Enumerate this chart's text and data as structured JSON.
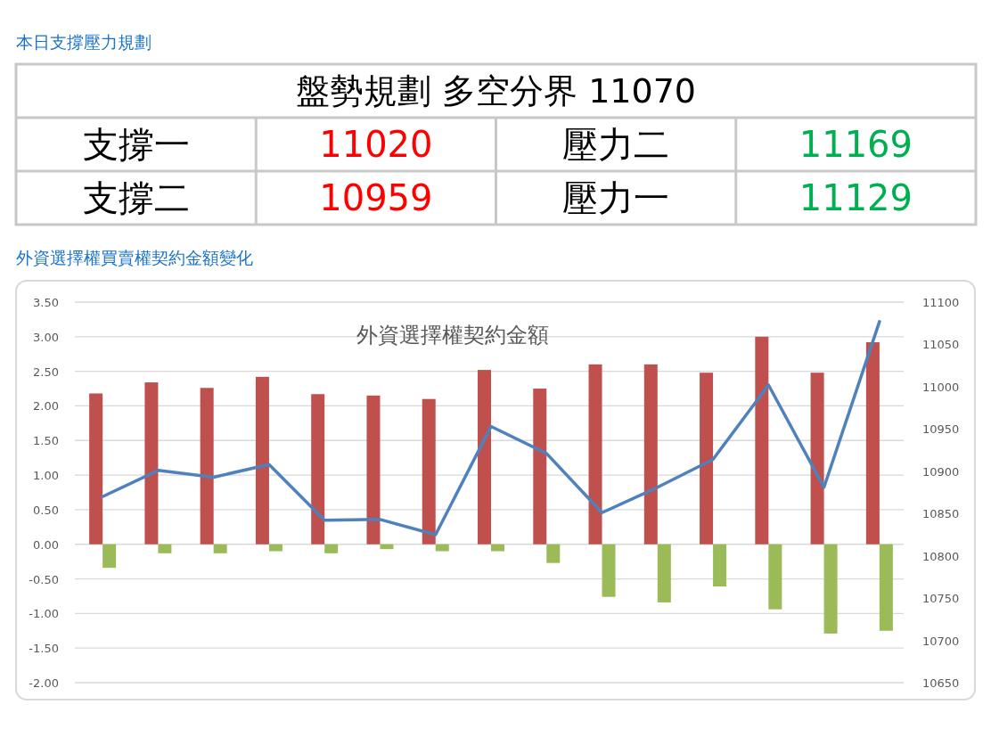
{
  "chart_data": [
    {
      "type": "other",
      "title": "本日支撐壓力規劃",
      "annotations": [
        "盤勢規劃 多空分界 11070",
        "支撐一",
        "11020",
        "壓力二",
        "11169",
        "支撐二",
        "10959",
        "壓力一",
        "11129"
      ]
    },
    {
      "type": "bar",
      "title": "外資選擇權契約金額",
      "annotations": [
        "外資選擇權買賣權契約金額變化"
      ],
      "categories": [
        null,
        null,
        null,
        null,
        null,
        null,
        null,
        null,
        null,
        null,
        null,
        null,
        null,
        null,
        null
      ],
      "series": [
        {
          "color": "#c0504d",
          "values": [
            2.18,
            2.34,
            2.26,
            2.42,
            2.17,
            2.15,
            2.1,
            2.52,
            2.25,
            2.6,
            2.6,
            2.48,
            3.0,
            2.48,
            2.92
          ]
        },
        {
          "color": "#9bbb59",
          "values": [
            -0.34,
            -0.13,
            -0.13,
            -0.1,
            -0.13,
            -0.07,
            -0.1,
            -0.1,
            -0.27,
            -0.76,
            -0.84,
            -0.61,
            -0.94,
            -1.29,
            -1.25
          ]
        },
        {
          "type": "line",
          "axis": "y2",
          "color": "#4f81bd",
          "values": [
            10870,
            10901,
            10893,
            10908,
            10842,
            10843,
            10825,
            10953,
            10921,
            10851,
            10881,
            10914,
            11002,
            10881,
            11077
          ]
        }
      ],
      "ylim": [
        -2,
        3.5
      ],
      "yticks": [
        {
          "value": 3.5,
          "label": "3.50"
        },
        {
          "value": 3,
          "label": "3.00"
        },
        {
          "value": 2.5,
          "label": "2.50"
        },
        {
          "value": 2,
          "label": "2.00"
        },
        {
          "value": 1.5,
          "label": "1.50"
        },
        {
          "value": 1,
          "label": "1.00"
        },
        {
          "value": 0.5,
          "label": "0.50"
        },
        {
          "value": 0,
          "label": "0.00"
        },
        {
          "value": -0.5,
          "label": "-0.50"
        },
        {
          "value": -1,
          "label": "-1.00"
        },
        {
          "value": -1.5,
          "label": "-1.50"
        },
        {
          "value": -2,
          "label": "-2.00"
        }
      ],
      "y2lim": [
        10650,
        11100
      ],
      "y2ticks": [
        11100,
        11050,
        11000,
        10950,
        10900,
        10850,
        10800,
        10750,
        10700,
        10650
      ],
      "grid": "y"
    }
  ]
}
